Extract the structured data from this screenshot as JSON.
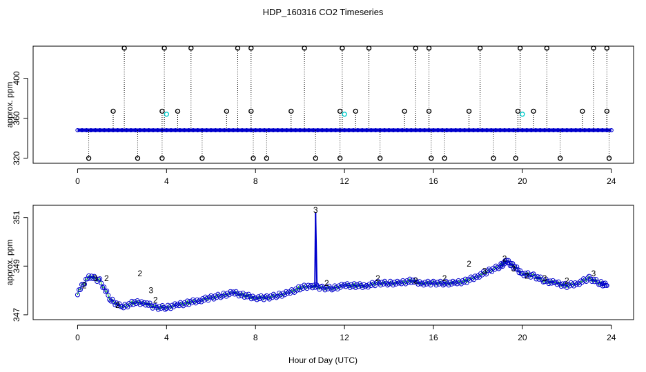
{
  "title": "HDP_160316  CO2 Timeseries",
  "colors": {
    "series_blue": "#0000cc",
    "series_green": "#00bb00",
    "highlight_cyan": "#00cccc",
    "outlier_black": "#000000"
  },
  "chart_data": [
    {
      "type": "scatter",
      "ylabel": "approx. ppm",
      "xlim": [
        -2,
        25
      ],
      "ylim": [
        315,
        432
      ],
      "x_ticks": [
        "0",
        "4",
        "8",
        "12",
        "16",
        "20",
        "24"
      ],
      "y_ticks": [
        "320",
        "360",
        "400"
      ],
      "baseline_ppm": 348,
      "outlier_spikes": [
        {
          "x": 2.1,
          "y": 430
        },
        {
          "x": 3.9,
          "y": 430
        },
        {
          "x": 5.1,
          "y": 430
        },
        {
          "x": 7.2,
          "y": 430
        },
        {
          "x": 7.8,
          "y": 430
        },
        {
          "x": 10.2,
          "y": 430
        },
        {
          "x": 11.9,
          "y": 430
        },
        {
          "x": 13.1,
          "y": 430
        },
        {
          "x": 15.2,
          "y": 430
        },
        {
          "x": 15.8,
          "y": 430
        },
        {
          "x": 18.1,
          "y": 430
        },
        {
          "x": 19.9,
          "y": 430
        },
        {
          "x": 21.1,
          "y": 430
        },
        {
          "x": 23.2,
          "y": 430
        },
        {
          "x": 23.8,
          "y": 430
        },
        {
          "x": 1.6,
          "y": 367
        },
        {
          "x": 3.8,
          "y": 367
        },
        {
          "x": 4.5,
          "y": 367
        },
        {
          "x": 6.7,
          "y": 367
        },
        {
          "x": 7.8,
          "y": 367
        },
        {
          "x": 9.6,
          "y": 367
        },
        {
          "x": 11.8,
          "y": 367
        },
        {
          "x": 12.5,
          "y": 367
        },
        {
          "x": 14.7,
          "y": 367
        },
        {
          "x": 15.8,
          "y": 367
        },
        {
          "x": 17.6,
          "y": 367
        },
        {
          "x": 19.8,
          "y": 367
        },
        {
          "x": 20.5,
          "y": 367
        },
        {
          "x": 22.7,
          "y": 367
        },
        {
          "x": 23.8,
          "y": 367
        },
        {
          "x": 0.5,
          "y": 320
        },
        {
          "x": 2.7,
          "y": 320
        },
        {
          "x": 3.8,
          "y": 320
        },
        {
          "x": 5.6,
          "y": 320
        },
        {
          "x": 7.9,
          "y": 320
        },
        {
          "x": 8.5,
          "y": 320
        },
        {
          "x": 10.7,
          "y": 320
        },
        {
          "x": 11.8,
          "y": 320
        },
        {
          "x": 13.6,
          "y": 320
        },
        {
          "x": 15.9,
          "y": 320
        },
        {
          "x": 16.5,
          "y": 320
        },
        {
          "x": 18.7,
          "y": 320
        },
        {
          "x": 19.7,
          "y": 320
        },
        {
          "x": 21.7,
          "y": 320
        },
        {
          "x": 23.9,
          "y": 320
        }
      ],
      "cyan_points": [
        {
          "x": 4.0,
          "y": 364
        },
        {
          "x": 12.0,
          "y": 364
        },
        {
          "x": 20.0,
          "y": 364
        }
      ]
    },
    {
      "type": "scatter",
      "xlabel": "Hour of Day (UTC)",
      "ylabel": "approx. ppm",
      "xlim": [
        -2,
        25
      ],
      "ylim": [
        346.8,
        351.5
      ],
      "x_ticks": [
        "0",
        "4",
        "8",
        "12",
        "16",
        "20",
        "24"
      ],
      "y_ticks": [
        "347",
        "349",
        "351"
      ],
      "series": [
        {
          "marker": "o",
          "x": [
            0.0,
            0.5,
            1.0,
            1.5,
            2.0,
            2.5,
            3.0,
            3.5,
            4.0,
            4.5,
            5.0,
            5.5,
            6.0,
            6.5,
            7.0,
            7.5,
            8.0,
            8.5,
            9.0,
            9.5,
            10.0,
            10.5,
            11.0,
            11.5,
            12.0,
            12.5,
            13.0,
            13.5,
            14.0,
            14.5,
            15.0,
            15.5,
            16.0,
            16.5,
            17.0,
            17.5,
            18.0,
            18.5,
            19.0,
            19.3,
            19.6,
            20.0,
            20.5,
            21.0,
            21.5,
            22.0,
            22.5,
            23.0,
            23.5,
            23.8
          ],
          "y": [
            347.9,
            348.6,
            348.4,
            347.6,
            347.3,
            347.5,
            347.5,
            347.3,
            347.3,
            347.4,
            347.5,
            347.6,
            347.7,
            347.8,
            347.9,
            347.8,
            347.7,
            347.7,
            347.8,
            347.9,
            348.1,
            348.2,
            348.1,
            348.1,
            348.2,
            348.2,
            348.2,
            348.3,
            348.3,
            348.3,
            348.4,
            348.3,
            348.3,
            348.3,
            348.3,
            348.4,
            348.6,
            348.8,
            349.0,
            349.2,
            349.0,
            348.7,
            348.6,
            348.4,
            348.3,
            348.2,
            348.3,
            348.5,
            348.3,
            348.2
          ]
        }
      ],
      "labeled_points": [
        {
          "x": 0.3,
          "y": 348.2,
          "label": "2"
        },
        {
          "x": 0.8,
          "y": 348.5,
          "label": "3"
        },
        {
          "x": 1.3,
          "y": 348.5,
          "label": "2"
        },
        {
          "x": 1.8,
          "y": 347.4,
          "label": "2"
        },
        {
          "x": 2.8,
          "y": 348.7,
          "label": "2"
        },
        {
          "x": 3.3,
          "y": 348.0,
          "label": "3"
        },
        {
          "x": 3.5,
          "y": 347.6,
          "label": "2"
        },
        {
          "x": 10.7,
          "y": 351.3,
          "label": "3"
        },
        {
          "x": 11.2,
          "y": 348.3,
          "label": "2"
        },
        {
          "x": 13.5,
          "y": 348.5,
          "label": "2"
        },
        {
          "x": 15.2,
          "y": 348.4,
          "label": "2"
        },
        {
          "x": 16.5,
          "y": 348.5,
          "label": "2"
        },
        {
          "x": 17.6,
          "y": 349.1,
          "label": "2"
        },
        {
          "x": 18.3,
          "y": 348.8,
          "label": "3"
        },
        {
          "x": 19.2,
          "y": 349.3,
          "label": "2"
        },
        {
          "x": 19.6,
          "y": 348.9,
          "label": "3"
        },
        {
          "x": 20.2,
          "y": 348.6,
          "label": "2"
        },
        {
          "x": 21.0,
          "y": 348.5,
          "label": "3"
        },
        {
          "x": 22.0,
          "y": 348.4,
          "label": "2"
        },
        {
          "x": 23.2,
          "y": 348.7,
          "label": "3"
        }
      ],
      "spike": {
        "x": 10.7,
        "peak": 351.2,
        "base": 348.2
      }
    }
  ]
}
